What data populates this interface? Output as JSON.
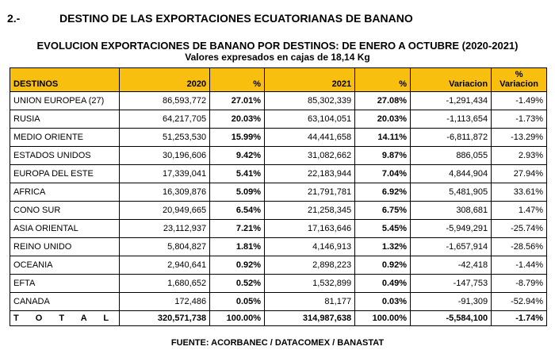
{
  "heading": {
    "number": "2.-",
    "title": "DESTINO DE LAS EXPORTACIONES ECUATORIANAS DE BANANO"
  },
  "table_title": "EVOLUCION EXPORTACIONES DE BANANO POR DESTINOS: DE ENERO A OCTUBRE (2020-2021)",
  "table_subtitle": "Valores expresados en cajas de 18,14 Kg",
  "header_color": "#f9bf0f",
  "columns": {
    "destinos": "DESTINOS",
    "y2020": "2020",
    "pct2020": "%",
    "y2021": "2021",
    "pct2021": "%",
    "variacion": "Variacion",
    "pct_variacion_line1": "%",
    "pct_variacion_line2": "Variacion"
  },
  "rows": [
    {
      "destino": "UNION EUROPEA (27)",
      "v2020": "86,593,772",
      "p2020": "27.01%",
      "v2021": "85,302,339",
      "p2021": "27.08%",
      "var": "-1,291,434",
      "pvar": "-1.49%"
    },
    {
      "destino": "RUSIA",
      "v2020": "64,217,705",
      "p2020": "20.03%",
      "v2021": "63,104,051",
      "p2021": "20.03%",
      "var": "-1,113,654",
      "pvar": "-1.73%"
    },
    {
      "destino": "MEDIO ORIENTE",
      "v2020": "51,253,530",
      "p2020": "15.99%",
      "v2021": "44,441,658",
      "p2021": "14.11%",
      "var": "-6,811,872",
      "pvar": "-13.29%"
    },
    {
      "destino": "ESTADOS UNIDOS",
      "v2020": "30,196,606",
      "p2020": "9.42%",
      "v2021": "31,082,662",
      "p2021": "9.87%",
      "var": "886,055",
      "pvar": "2.93%"
    },
    {
      "destino": "EUROPA DEL ESTE",
      "v2020": "17,339,041",
      "p2020": "5.41%",
      "v2021": "22,183,944",
      "p2021": "7.04%",
      "var": "4,844,904",
      "pvar": "27.94%"
    },
    {
      "destino": "AFRICA",
      "v2020": "16,309,876",
      "p2020": "5.09%",
      "v2021": "21,791,781",
      "p2021": "6.92%",
      "var": "5,481,905",
      "pvar": "33.61%"
    },
    {
      "destino": "CONO SUR",
      "v2020": "20,949,665",
      "p2020": "6.54%",
      "v2021": "21,258,345",
      "p2021": "6.75%",
      "var": "308,681",
      "pvar": "1.47%"
    },
    {
      "destino": "ASIA ORIENTAL",
      "v2020": "23,112,937",
      "p2020": "7.21%",
      "v2021": "17,163,646",
      "p2021": "5.45%",
      "var": "-5,949,291",
      "pvar": "-25.74%"
    },
    {
      "destino": "REINO UNIDO",
      "v2020": "5,804,827",
      "p2020": "1.81%",
      "v2021": "4,146,913",
      "p2021": "1.32%",
      "var": "-1,657,914",
      "pvar": "-28.56%"
    },
    {
      "destino": "OCEANIA",
      "v2020": "2,940,641",
      "p2020": "0.92%",
      "v2021": "2,898,223",
      "p2021": "0.92%",
      "var": "-42,418",
      "pvar": "-1.44%"
    },
    {
      "destino": "EFTA",
      "v2020": "1,680,652",
      "p2020": "0.52%",
      "v2021": "1,532,899",
      "p2021": "0.49%",
      "var": "-147,753",
      "pvar": "-8.79%"
    },
    {
      "destino": "CANADA",
      "v2020": "172,486",
      "p2020": "0.05%",
      "v2021": "81,177",
      "p2021": "0.03%",
      "var": "-91,309",
      "pvar": "-52.94%"
    }
  ],
  "total": {
    "label": "T O T A L",
    "v2020": "320,571,738",
    "p2020": "100.00%",
    "v2021": "314,987,638",
    "p2021": "100.00%",
    "var": "-5,584,100",
    "pvar": "-1.74%"
  },
  "source": "FUENTE: ACORBANEC / DATACOMEX / BANASTAT"
}
